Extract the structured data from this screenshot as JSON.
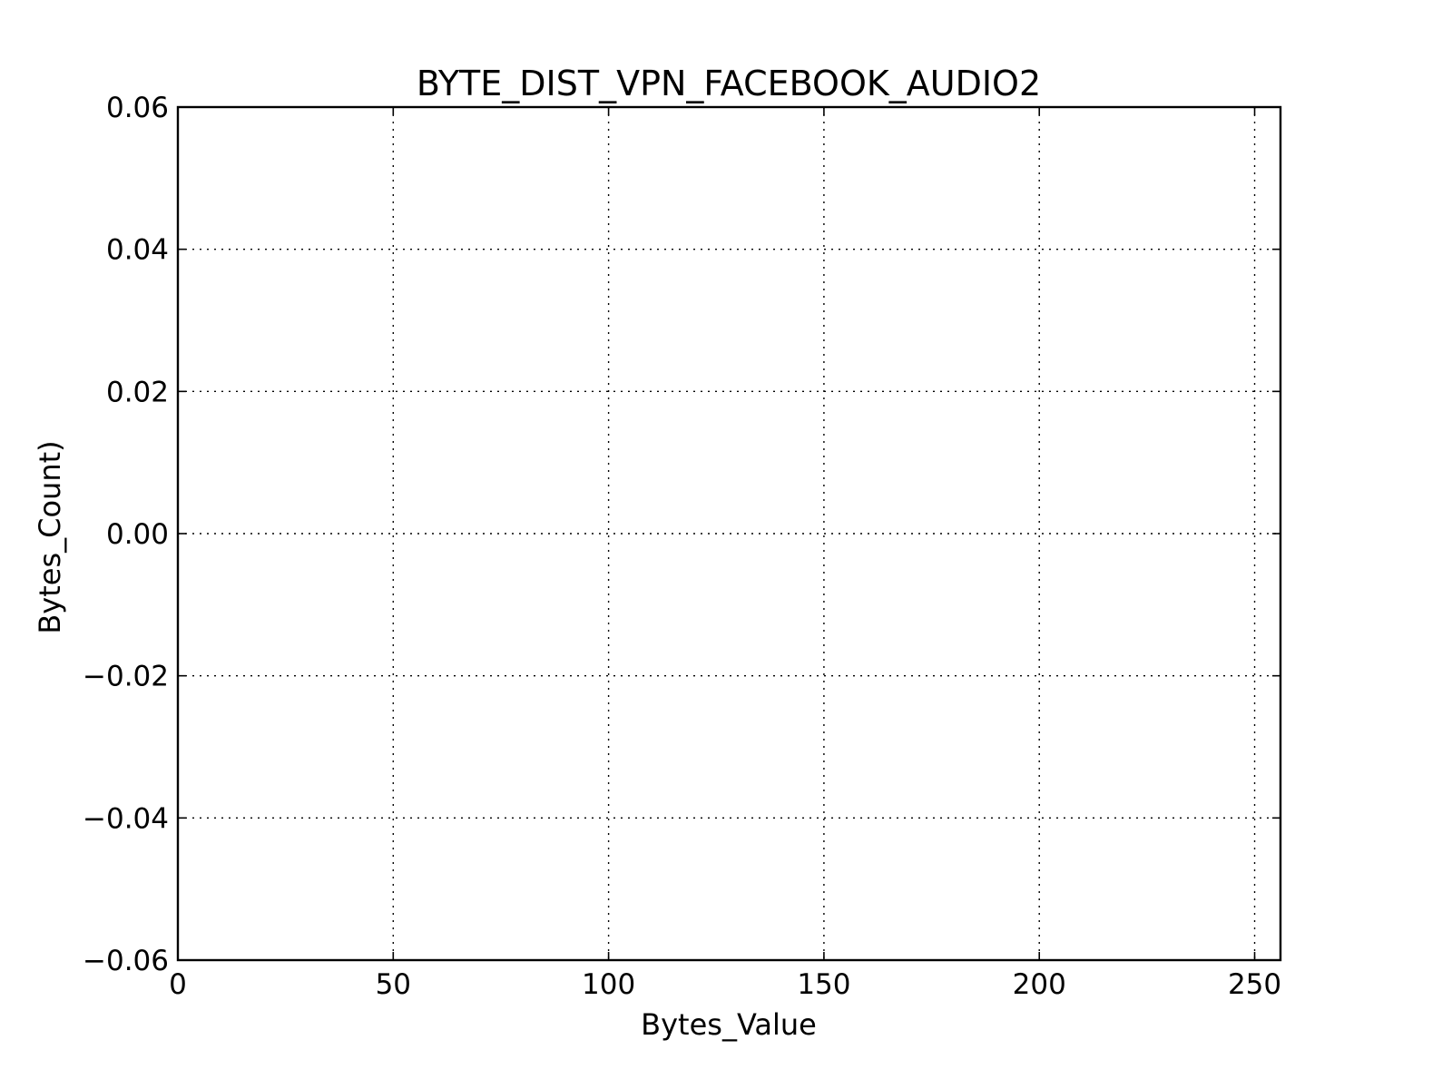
{
  "chart_data": {
    "type": "line",
    "title": "BYTE_DIST_VPN_FACEBOOK_AUDIO2",
    "xlabel": "Bytes_Value",
    "ylabel": "Bytes_Count)",
    "xlim": [
      0,
      256
    ],
    "ylim": [
      -0.06,
      0.06
    ],
    "xticks": [
      0,
      50,
      100,
      150,
      200,
      250
    ],
    "xtick_labels": [
      "0",
      "50",
      "100",
      "150",
      "200",
      "250"
    ],
    "yticks": [
      -0.06,
      -0.04,
      -0.02,
      0.0,
      0.02,
      0.04,
      0.06
    ],
    "ytick_labels": [
      "−0.06",
      "−0.04",
      "−0.02",
      "0.00",
      "0.02",
      "0.04",
      "0.06"
    ],
    "grid": true,
    "series": []
  }
}
